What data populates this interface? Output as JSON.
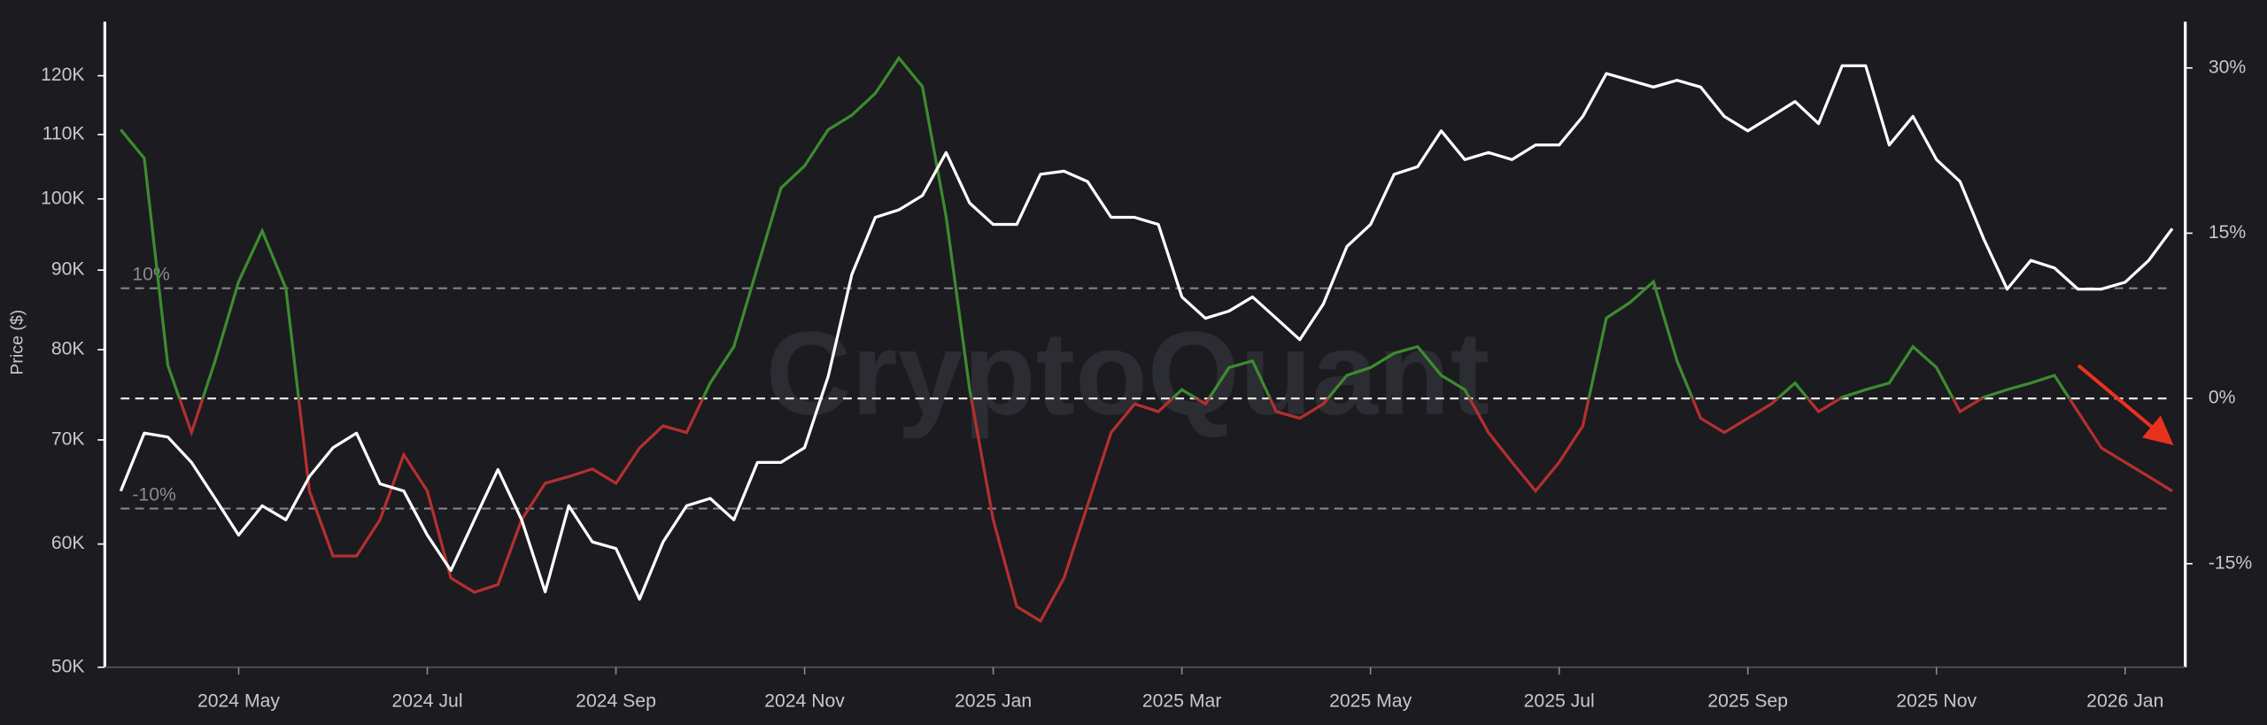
{
  "chart_data": {
    "type": "line",
    "y_label": "Price ($)",
    "watermark": "CryptoQuant",
    "categories": [
      null,
      null,
      null,
      null,
      null,
      "2024 May",
      null,
      null,
      null,
      null,
      null,
      null,
      null,
      "2024 Jul",
      null,
      null,
      null,
      null,
      null,
      null,
      null,
      "2024 Sep",
      null,
      null,
      null,
      null,
      null,
      null,
      null,
      "2024 Nov",
      null,
      null,
      null,
      null,
      null,
      null,
      null,
      "2025 Jan",
      null,
      null,
      null,
      null,
      null,
      null,
      null,
      "2025 Mar",
      null,
      null,
      null,
      null,
      null,
      null,
      null,
      "2025 May",
      null,
      null,
      null,
      null,
      null,
      null,
      null,
      "2025 Jul",
      null,
      null,
      null,
      null,
      null,
      null,
      null,
      "2025 Sep",
      null,
      null,
      null,
      null,
      null,
      null,
      null,
      "2025 Nov",
      null,
      null,
      null,
      null,
      null,
      null,
      null,
      "2026 Jan",
      null,
      null
    ],
    "log_y": true,
    "ylim": [
      50000,
      130000
    ],
    "yticks": [
      {
        "value": 50000,
        "label": "50K"
      },
      {
        "value": 60000,
        "label": "60K"
      },
      {
        "value": 70000,
        "label": "70K"
      },
      {
        "value": 80000,
        "label": "80K"
      },
      {
        "value": 90000,
        "label": "90K"
      },
      {
        "value": 100000,
        "label": "100K"
      },
      {
        "value": 110000,
        "label": "110K"
      },
      {
        "value": 120000,
        "label": "120K"
      }
    ],
    "y2lim": [
      -24.4,
      34.2
    ],
    "y2ticks": [
      {
        "value": -15,
        "label": "-15%"
      },
      {
        "value": 0,
        "label": "0%"
      },
      {
        "value": 15,
        "label": "15%"
      },
      {
        "value": 30,
        "label": "30%"
      }
    ],
    "reference_lines": [
      {
        "value": 10,
        "label": "10%"
      },
      {
        "value": 0
      },
      {
        "value": -10,
        "label": "-10%"
      }
    ],
    "series": [
      {
        "axis": "y2",
        "color": "#3d8b2f",
        "negative_color": "#b3302e",
        "values": [
          24.4,
          21.8,
          3,
          -3.1,
          3.4,
          10.6,
          15.2,
          10,
          -8.4,
          -14.3,
          -14.3,
          -11,
          -5.1,
          -8.4,
          -16.3,
          -17.6,
          -16.9,
          -11,
          -7.7,
          -7.1,
          -6.4,
          -7.7,
          -4.5,
          -2.5,
          -3.1,
          1.4,
          4.7,
          11.9,
          19.1,
          21.1,
          24.4,
          25.7,
          27.7,
          30.9,
          28.3,
          16.5,
          0.8,
          -11,
          -18.9,
          -20.2,
          -16.3,
          -9.7,
          -3.1,
          -0.5,
          -1.2,
          0.8,
          -0.5,
          2.8,
          3.4,
          -1.2,
          -1.8,
          -0.5,
          2.1,
          2.8,
          4.1,
          4.7,
          2.1,
          0.8,
          -3.1,
          -5.8,
          -8.4,
          -5.8,
          -2.5,
          7.3,
          8.7,
          10.6,
          3.4,
          -1.8,
          -3.1,
          -1.8,
          -0.5,
          1.4,
          -1.2,
          0.1,
          0.8,
          1.4,
          4.7,
          2.8,
          -1.2,
          0.1,
          0.8,
          1.4,
          2.1,
          -1.2,
          -4.5,
          -5.8,
          -7.1,
          -8.4
        ]
      },
      {
        "axis": "y",
        "color": "#ffffff",
        "values": [
          64900,
          70700,
          70300,
          67700,
          64200,
          60800,
          63500,
          62200,
          66300,
          69200,
          70700,
          65600,
          64900,
          60800,
          57700,
          62200,
          67000,
          62200,
          55900,
          63500,
          60200,
          59600,
          55300,
          60200,
          63500,
          64200,
          62200,
          67700,
          67700,
          69200,
          76900,
          89400,
          97300,
          98400,
          100500,
          107100,
          99400,
          96300,
          96300,
          103700,
          104200,
          102600,
          97300,
          97300,
          96300,
          86500,
          83800,
          84700,
          86500,
          83800,
          81200,
          85600,
          93200,
          96300,
          103700,
          104900,
          110600,
          106000,
          107100,
          106000,
          108300,
          108300,
          113000,
          120400,
          119200,
          118000,
          119200,
          118000,
          113000,
          110600,
          113000,
          115500,
          111800,
          121800,
          121800,
          108300,
          113000,
          106000,
          102600,
          94300,
          87500,
          91300,
          90300,
          87500,
          87500,
          88400,
          91300,
          95700
        ]
      }
    ]
  }
}
